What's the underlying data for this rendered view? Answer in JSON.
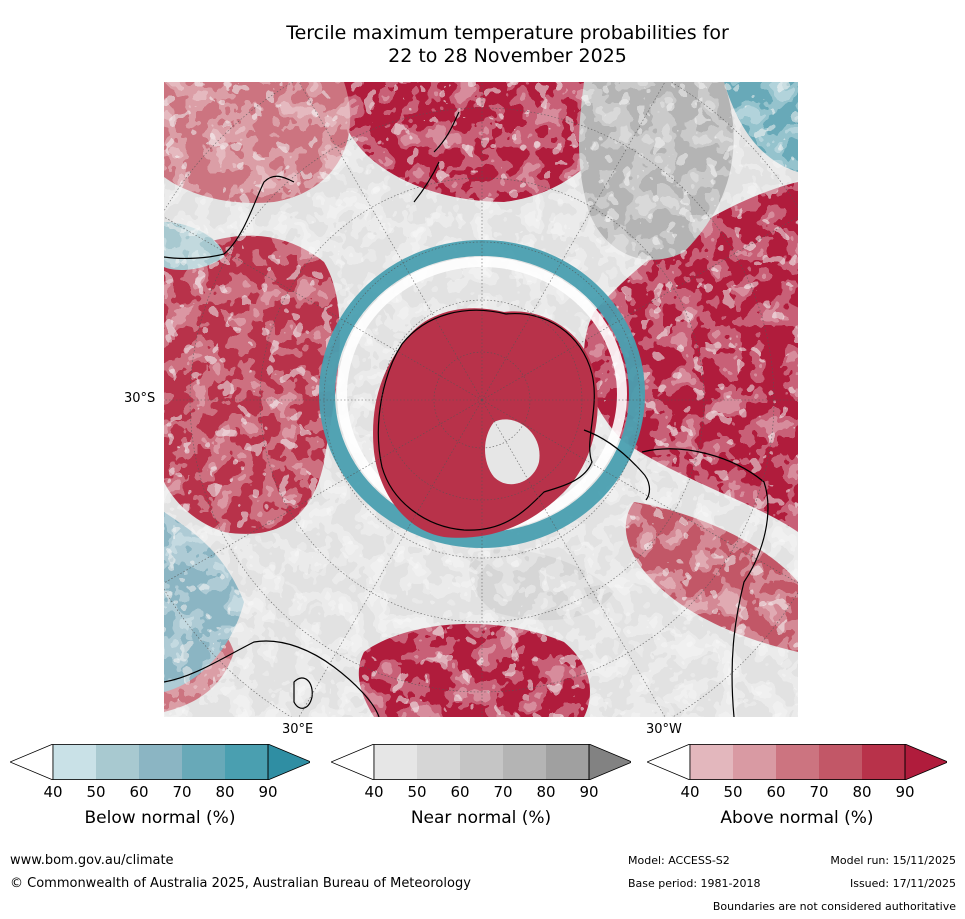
{
  "title": {
    "line1": "Tercile maximum temperature probabilities for",
    "line2": "22 to 28 November 2025"
  },
  "map": {
    "lat_label": "30°S",
    "lon_label_east": "30°E",
    "lon_label_west": "30°W"
  },
  "colorbars": [
    {
      "id": "below",
      "label": "Below normal (%)",
      "ticks": [
        "40",
        "50",
        "60",
        "70",
        "80",
        "90"
      ],
      "colors": [
        "#ffffff",
        "#c9e1e7",
        "#a8c9d0",
        "#8bb5c3",
        "#68a9b8",
        "#4a9fb0",
        "#2f8ea3"
      ]
    },
    {
      "id": "near",
      "label": "Near normal (%)",
      "ticks": [
        "40",
        "50",
        "60",
        "70",
        "80",
        "90"
      ],
      "colors": [
        "#ffffff",
        "#e6e6e6",
        "#d6d6d6",
        "#c5c5c5",
        "#b4b4b4",
        "#a0a0a0",
        "#828282"
      ]
    },
    {
      "id": "above",
      "label": "Above normal (%)",
      "ticks": [
        "40",
        "50",
        "60",
        "70",
        "80",
        "90"
      ],
      "colors": [
        "#ffffff",
        "#e3b7bd",
        "#d99aa3",
        "#cc7480",
        "#c25767",
        "#b8324a",
        "#b01c3c"
      ]
    }
  ],
  "footer": {
    "website": "www.bom.gov.au/climate",
    "copyright": "© Commonwealth of Australia 2025, Australian Bureau of Meteorology",
    "model": "Model: ACCESS-S2",
    "model_run": "Model run: 15/11/2025",
    "base_period": "Base period: 1981-2018",
    "issued": "Issued: 17/11/2025",
    "disclaimer": "Boundaries are not considered authoritative"
  }
}
